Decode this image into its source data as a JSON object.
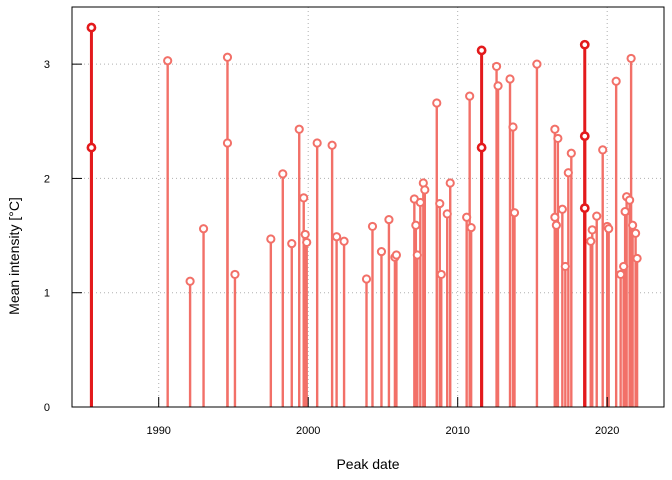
{
  "chart_data": {
    "type": "lollipop",
    "xlabel": "Peak date",
    "ylabel": "Mean intensity [°C]",
    "x_ticks": [
      1990,
      2000,
      2010,
      2020
    ],
    "y_ticks": [
      0,
      1,
      2,
      3
    ],
    "xlim": [
      1984.2,
      2023.8
    ],
    "ylim": [
      0,
      3.5
    ],
    "grid": true,
    "colors": {
      "regular": "#f27068",
      "highlight": "#e31a1c",
      "axis": "#000000",
      "grid": "#b0b0b0"
    },
    "series": [
      {
        "name": "",
        "highlight": true,
        "points": [
          [
            1985.5,
            3.32
          ],
          [
            1985.5,
            2.27
          ],
          [
            2011.6,
            3.12
          ],
          [
            2011.6,
            2.27
          ],
          [
            2018.5,
            3.17
          ],
          [
            2018.5,
            2.37
          ],
          [
            2018.5,
            1.74
          ]
        ]
      },
      {
        "name": "",
        "highlight": false,
        "points": [
          [
            1990.6,
            3.03
          ],
          [
            1992.1,
            1.1
          ],
          [
            1993.0,
            1.56
          ],
          [
            1994.6,
            3.06
          ],
          [
            1994.6,
            2.31
          ],
          [
            1995.1,
            1.16
          ],
          [
            1997.5,
            1.47
          ],
          [
            1998.3,
            2.04
          ],
          [
            1998.9,
            1.43
          ],
          [
            1999.4,
            2.43
          ],
          [
            1999.7,
            1.83
          ],
          [
            1999.8,
            1.51
          ],
          [
            1999.9,
            1.44
          ],
          [
            2000.6,
            2.31
          ],
          [
            2001.6,
            2.29
          ],
          [
            2001.9,
            1.49
          ],
          [
            2002.4,
            1.45
          ],
          [
            2003.9,
            1.12
          ],
          [
            2004.3,
            1.58
          ],
          [
            2004.9,
            1.36
          ],
          [
            2005.4,
            1.64
          ],
          [
            2005.8,
            1.31
          ],
          [
            2005.9,
            1.33
          ],
          [
            2007.1,
            1.82
          ],
          [
            2007.2,
            1.59
          ],
          [
            2007.3,
            1.33
          ],
          [
            2007.5,
            1.79
          ],
          [
            2007.7,
            1.96
          ],
          [
            2007.8,
            1.9
          ],
          [
            2008.6,
            2.66
          ],
          [
            2008.8,
            1.78
          ],
          [
            2008.9,
            1.16
          ],
          [
            2009.3,
            1.69
          ],
          [
            2009.5,
            1.96
          ],
          [
            2010.6,
            1.66
          ],
          [
            2010.8,
            2.72
          ],
          [
            2010.9,
            1.57
          ],
          [
            2012.6,
            2.98
          ],
          [
            2012.7,
            2.81
          ],
          [
            2013.5,
            2.87
          ],
          [
            2013.7,
            2.45
          ],
          [
            2013.8,
            1.7
          ],
          [
            2015.3,
            3.0
          ],
          [
            2016.5,
            2.43
          ],
          [
            2016.5,
            1.66
          ],
          [
            2016.6,
            1.59
          ],
          [
            2016.7,
            2.35
          ],
          [
            2017.0,
            1.73
          ],
          [
            2017.2,
            1.23
          ],
          [
            2017.4,
            2.05
          ],
          [
            2017.6,
            2.22
          ],
          [
            2018.9,
            1.45
          ],
          [
            2019.0,
            1.55
          ],
          [
            2019.3,
            1.67
          ],
          [
            2019.7,
            2.25
          ],
          [
            2020.0,
            1.58
          ],
          [
            2020.1,
            1.56
          ],
          [
            2020.6,
            2.85
          ],
          [
            2020.9,
            1.16
          ],
          [
            2021.1,
            1.23
          ],
          [
            2021.2,
            1.71
          ],
          [
            2021.3,
            1.84
          ],
          [
            2021.5,
            1.81
          ],
          [
            2021.6,
            3.05
          ],
          [
            2021.7,
            1.59
          ],
          [
            2021.9,
            1.52
          ],
          [
            2022.0,
            1.3
          ]
        ]
      }
    ]
  }
}
